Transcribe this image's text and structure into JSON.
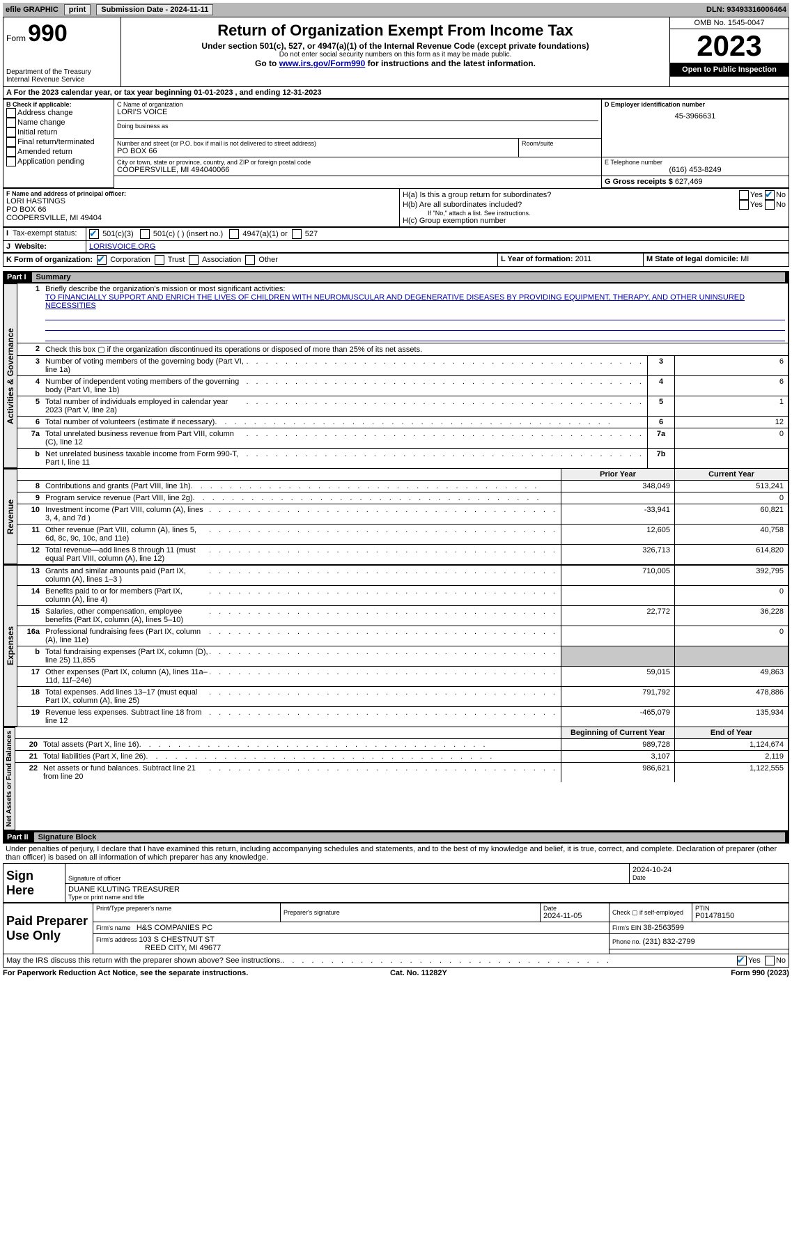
{
  "topbar": {
    "efile": "efile GRAPHIC",
    "print": "print",
    "submission": "Submission Date - 2024-11-11",
    "dln": "DLN: 93493316006464"
  },
  "header": {
    "form_label": "Form",
    "form_number": "990",
    "dept": "Department of the Treasury",
    "irs": "Internal Revenue Service",
    "title": "Return of Organization Exempt From Income Tax",
    "subtitle": "Under section 501(c), 527, or 4947(a)(1) of the Internal Revenue Code (except private foundations)",
    "ssn_note": "Do not enter social security numbers on this form as it may be made public.",
    "goto_pre": "Go to ",
    "goto_link": "www.irs.gov/Form990",
    "goto_post": " for instructions and the latest information.",
    "omb": "OMB No. 1545-0047",
    "year": "2023",
    "open": "Open to Public Inspection"
  },
  "lineA": "A For the 2023 calendar year, or tax year beginning 01-01-2023    , and ending 12-31-2023",
  "boxB": {
    "title": "B Check if applicable:",
    "items": [
      "Address change",
      "Name change",
      "Initial return",
      "Final return/terminated",
      "Amended return",
      "Application pending"
    ]
  },
  "boxC": {
    "name_lbl": "C Name of organization",
    "name": "LORI'S VOICE",
    "dba_lbl": "Doing business as",
    "street_lbl": "Number and street (or P.O. box if mail is not delivered to street address)",
    "room_lbl": "Room/suite",
    "street": "PO BOX 66",
    "city_lbl": "City or town, state or province, country, and ZIP or foreign postal code",
    "city": "COOPERSVILLE, MI  494040066"
  },
  "boxD": {
    "lbl": "D Employer identification number",
    "val": "45-3966631"
  },
  "boxE": {
    "lbl": "E Telephone number",
    "val": "(616) 453-8249"
  },
  "boxG": {
    "lbl": "G Gross receipts $",
    "val": "627,469"
  },
  "boxF": {
    "lbl": "F Name and address of principal officer:",
    "name": "LORI HASTINGS",
    "street": "PO BOX 66",
    "city": "COOPERSVILLE, MI  49404"
  },
  "boxH": {
    "a": "H(a)  Is this a group return for subordinates?",
    "b": "H(b)  Are all subordinates included?",
    "b_note": "If \"No,\" attach a list. See instructions.",
    "c": "H(c)  Group exemption number ",
    "yes": "Yes",
    "no": "No"
  },
  "boxI": {
    "lbl": "Tax-exempt status:",
    "o1": "501(c)(3)",
    "o2": "501(c) (  ) (insert no.)",
    "o3": "4947(a)(1) or",
    "o4": "527"
  },
  "boxJ": {
    "lbl": "Website: ",
    "val": "LORISVOICE.ORG"
  },
  "boxK": {
    "lbl": "K Form of organization:",
    "opts": [
      "Corporation",
      "Trust",
      "Association",
      "Other"
    ]
  },
  "boxL": {
    "lbl": "L Year of formation: ",
    "val": "2011"
  },
  "boxM": {
    "lbl": "M State of legal domicile: ",
    "val": "MI"
  },
  "part1": {
    "num": "Part I",
    "title": "Summary"
  },
  "tabs": {
    "gov": "Activities & Governance",
    "rev": "Revenue",
    "exp": "Expenses",
    "net": "Net Assets or Fund Balances"
  },
  "mission": {
    "lbl": "Briefly describe the organization's mission or most significant activities:",
    "txt": "TO FINANCIALLY SUPPORT AND ENRICH THE LIVES OF CHILDREN WITH NEUROMUSCULAR AND DEGENERATIVE DISEASES BY PROVIDING EQUIPMENT, THERAPY, AND OTHER UNINSURED NECESSITIES"
  },
  "line2": "Check this box ▢ if the organization discontinued its operations or disposed of more than 25% of its net assets.",
  "govrows": [
    {
      "n": "3",
      "t": "Number of voting members of the governing body (Part VI, line 1a)",
      "b": "3",
      "v": "6"
    },
    {
      "n": "4",
      "t": "Number of independent voting members of the governing body (Part VI, line 1b)",
      "b": "4",
      "v": "6"
    },
    {
      "n": "5",
      "t": "Total number of individuals employed in calendar year 2023 (Part V, line 2a)",
      "b": "5",
      "v": "1"
    },
    {
      "n": "6",
      "t": "Total number of volunteers (estimate if necessary)",
      "b": "6",
      "v": "12"
    },
    {
      "n": "7a",
      "t": "Total unrelated business revenue from Part VIII, column (C), line 12",
      "b": "7a",
      "v": "0"
    },
    {
      "n": "b",
      "t": "Net unrelated business taxable income from Form 990-T, Part I, line 11",
      "b": "7b",
      "v": ""
    }
  ],
  "colhdr": {
    "prior": "Prior Year",
    "current": "Current Year",
    "begin": "Beginning of Current Year",
    "end": "End of Year"
  },
  "revrows": [
    {
      "n": "8",
      "t": "Contributions and grants (Part VIII, line 1h)",
      "p": "348,049",
      "c": "513,241"
    },
    {
      "n": "9",
      "t": "Program service revenue (Part VIII, line 2g)",
      "p": "",
      "c": "0"
    },
    {
      "n": "10",
      "t": "Investment income (Part VIII, column (A), lines 3, 4, and 7d )",
      "p": "-33,941",
      "c": "60,821"
    },
    {
      "n": "11",
      "t": "Other revenue (Part VIII, column (A), lines 5, 6d, 8c, 9c, 10c, and 11e)",
      "p": "12,605",
      "c": "40,758"
    },
    {
      "n": "12",
      "t": "Total revenue—add lines 8 through 11 (must equal Part VIII, column (A), line 12)",
      "p": "326,713",
      "c": "614,820"
    }
  ],
  "exprows": [
    {
      "n": "13",
      "t": "Grants and similar amounts paid (Part IX, column (A), lines 1–3 )",
      "p": "710,005",
      "c": "392,795"
    },
    {
      "n": "14",
      "t": "Benefits paid to or for members (Part IX, column (A), line 4)",
      "p": "",
      "c": "0"
    },
    {
      "n": "15",
      "t": "Salaries, other compensation, employee benefits (Part IX, column (A), lines 5–10)",
      "p": "22,772",
      "c": "36,228"
    },
    {
      "n": "16a",
      "t": "Professional fundraising fees (Part IX, column (A), line 11e)",
      "p": "",
      "c": "0"
    },
    {
      "n": "b",
      "t": "Total fundraising expenses (Part IX, column (D), line 25) 11,855",
      "p": "SHADE",
      "c": "SHADE"
    },
    {
      "n": "17",
      "t": "Other expenses (Part IX, column (A), lines 11a–11d, 11f–24e)",
      "p": "59,015",
      "c": "49,863"
    },
    {
      "n": "18",
      "t": "Total expenses. Add lines 13–17 (must equal Part IX, column (A), line 25)",
      "p": "791,792",
      "c": "478,886"
    },
    {
      "n": "19",
      "t": "Revenue less expenses. Subtract line 18 from line 12",
      "p": "-465,079",
      "c": "135,934"
    }
  ],
  "netrows": [
    {
      "n": "20",
      "t": "Total assets (Part X, line 16)",
      "p": "989,728",
      "c": "1,124,674"
    },
    {
      "n": "21",
      "t": "Total liabilities (Part X, line 26)",
      "p": "3,107",
      "c": "2,119"
    },
    {
      "n": "22",
      "t": "Net assets or fund balances. Subtract line 21 from line 20",
      "p": "986,621",
      "c": "1,122,555"
    }
  ],
  "part2": {
    "num": "Part II",
    "title": "Signature Block"
  },
  "perjury": "Under penalties of perjury, I declare that I have examined this return, including accompanying schedules and statements, and to the best of my knowledge and belief, it is true, correct, and complete. Declaration of preparer (other than officer) is based on all information of which preparer has any knowledge.",
  "sign": {
    "here": "Sign Here",
    "sig_lbl": "Signature of officer",
    "date_lbl": "Date",
    "date": "2024-10-24",
    "officer": "DUANE KLUTING  TREASURER",
    "type_lbl": "Type or print name and title"
  },
  "paid": {
    "title": "Paid Preparer Use Only",
    "name_lbl": "Print/Type preparer's name",
    "sig_lbl": "Preparer's signature",
    "date_lbl": "Date",
    "date": "2024-11-05",
    "check_lbl": "Check ▢ if self-employed",
    "ptin_lbl": "PTIN",
    "ptin": "P01478150",
    "firm_name_lbl": "Firm's name ",
    "firm_name": "H&S COMPANIES PC",
    "firm_ein_lbl": "Firm's EIN ",
    "firm_ein": "38-2563599",
    "firm_addr_lbl": "Firm's address ",
    "firm_addr1": "103 S CHESTNUT ST",
    "firm_addr2": "REED CITY, MI  49677",
    "phone_lbl": "Phone no. ",
    "phone": "(231) 832-2799"
  },
  "discuss": "May the IRS discuss this return with the preparer shown above? See instructions.",
  "footer": {
    "left": "For Paperwork Reduction Act Notice, see the separate instructions.",
    "mid": "Cat. No. 11282Y",
    "right": "Form 990 (2023)"
  },
  "yesno": {
    "yes": "Yes",
    "no": "No"
  }
}
